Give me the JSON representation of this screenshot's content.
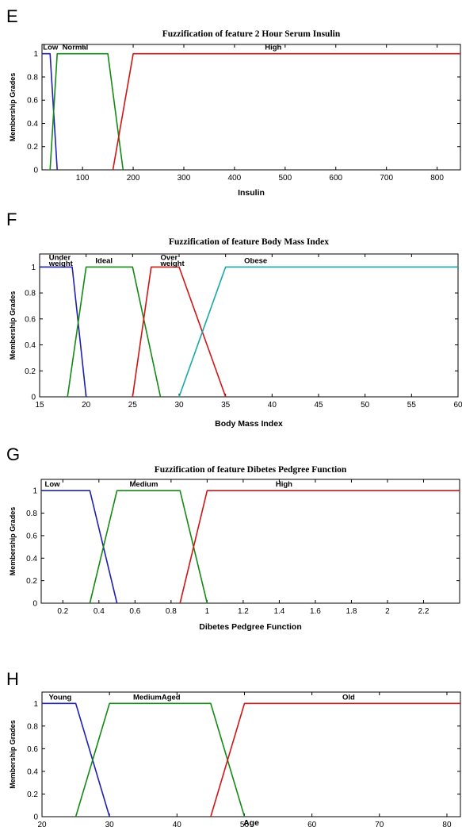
{
  "colors": {
    "blue": "#1f1fb4",
    "green": "#138a13",
    "red": "#d11414",
    "cyan": "#19a8a8"
  },
  "chart_data": [
    {
      "type": "line",
      "panel": "E",
      "title": "Fuzzification of feature 2 Hour Serum Insulin",
      "xlabel": "Insulin",
      "ylabel": "Membership Grades",
      "xlim": [
        20,
        846
      ],
      "ylim": [
        0,
        1.08
      ],
      "xticks": [
        100,
        200,
        300,
        400,
        500,
        600,
        700,
        800
      ],
      "yticks": [
        0,
        0.2,
        0.4,
        0.6,
        0.8,
        1
      ],
      "grid": false,
      "series": [
        {
          "name": "Low",
          "color": "blue",
          "x": [
            20,
            36,
            50
          ],
          "y": [
            1,
            1,
            0
          ],
          "label_x": 22
        },
        {
          "name": "Normal",
          "color": "green",
          "x": [
            36,
            50,
            150,
            180
          ],
          "y": [
            0,
            1,
            1,
            0
          ],
          "label_x": 60
        },
        {
          "name": "High",
          "color": "red",
          "x": [
            160,
            200,
            846
          ],
          "y": [
            0,
            1,
            1
          ],
          "label_x": 460
        }
      ]
    },
    {
      "type": "line",
      "panel": "F",
      "title": "Fuzzification of feature Body Mass Index",
      "xlabel": "Body Mass Index",
      "ylabel": "Membership Grades",
      "xlim": [
        15,
        60
      ],
      "ylim": [
        0,
        1.1
      ],
      "xticks": [
        15,
        20,
        25,
        30,
        35,
        40,
        45,
        50,
        55,
        60
      ],
      "yticks": [
        0,
        0.2,
        0.4,
        0.6,
        0.8,
        1
      ],
      "grid": false,
      "series": [
        {
          "name": "Under weight",
          "line1": "Under",
          "line2": "weight",
          "color": "blue",
          "x": [
            15,
            18.5,
            20
          ],
          "y": [
            1,
            1,
            0
          ],
          "label_x": 16
        },
        {
          "name": "Ideal",
          "color": "green",
          "x": [
            18,
            20,
            25,
            28
          ],
          "y": [
            0,
            1,
            1,
            0
          ],
          "label_x": 21
        },
        {
          "name": "Over weight",
          "line1": "Over",
          "line2": "weight",
          "color": "red",
          "x": [
            25,
            27,
            30,
            35
          ],
          "y": [
            0,
            1,
            1,
            0
          ],
          "label_x": 28
        },
        {
          "name": "Obese",
          "color": "cyan",
          "x": [
            30,
            35,
            60
          ],
          "y": [
            0,
            1,
            1
          ],
          "label_x": 37
        }
      ]
    },
    {
      "type": "line",
      "panel": "G",
      "title": "Fuzzification of feature Dibetes Pedgree Function",
      "xlabel": "Dibetes Pedgree Function",
      "ylabel": "Membership Grades",
      "xlim": [
        0.08,
        2.4
      ],
      "ylim": [
        0,
        1.1
      ],
      "xticks": [
        0.2,
        0.4,
        0.6,
        0.8,
        1,
        1.2,
        1.4,
        1.6,
        1.8,
        2,
        2.2
      ],
      "xticklabels": [
        "0.2",
        "0.4",
        "0.6",
        "0.8",
        "1",
        "1.2",
        "1.4",
        "1.6",
        "1.8",
        "2",
        "2.2"
      ],
      "yticks": [
        0,
        0.2,
        0.4,
        0.6,
        0.8,
        1
      ],
      "grid": false,
      "series": [
        {
          "name": "Low",
          "color": "blue",
          "x": [
            0.08,
            0.35,
            0.5
          ],
          "y": [
            1,
            1,
            0
          ],
          "label_x": 0.1
        },
        {
          "name": "Medium",
          "color": "green",
          "x": [
            0.35,
            0.5,
            0.85,
            1.0
          ],
          "y": [
            0,
            1,
            1,
            0
          ],
          "label_x": 0.57
        },
        {
          "name": "High",
          "color": "red",
          "x": [
            0.85,
            1.0,
            2.4
          ],
          "y": [
            0,
            1,
            1
          ],
          "label_x": 1.38
        }
      ]
    },
    {
      "type": "line",
      "panel": "H",
      "title": "Fuzzification of feature Age",
      "xlabel": "Age",
      "ylabel": "Membership Grades",
      "xlim": [
        20,
        82
      ],
      "ylim": [
        0,
        1.1
      ],
      "xticks": [
        20,
        30,
        40,
        50,
        60,
        70,
        80
      ],
      "yticks": [
        0,
        0.2,
        0.4,
        0.6,
        0.8,
        1
      ],
      "grid": false,
      "series": [
        {
          "name": "Young",
          "color": "blue",
          "x": [
            20,
            25,
            30
          ],
          "y": [
            1,
            1,
            0
          ],
          "label_x": 21
        },
        {
          "name": "MediumAged",
          "color": "green",
          "x": [
            25,
            30,
            45,
            50
          ],
          "y": [
            0,
            1,
            1,
            0
          ],
          "label_x": 33.5
        },
        {
          "name": "Old",
          "color": "red",
          "x": [
            45,
            50,
            82
          ],
          "y": [
            0,
            1,
            1
          ],
          "label_x": 64.5
        }
      ]
    }
  ]
}
